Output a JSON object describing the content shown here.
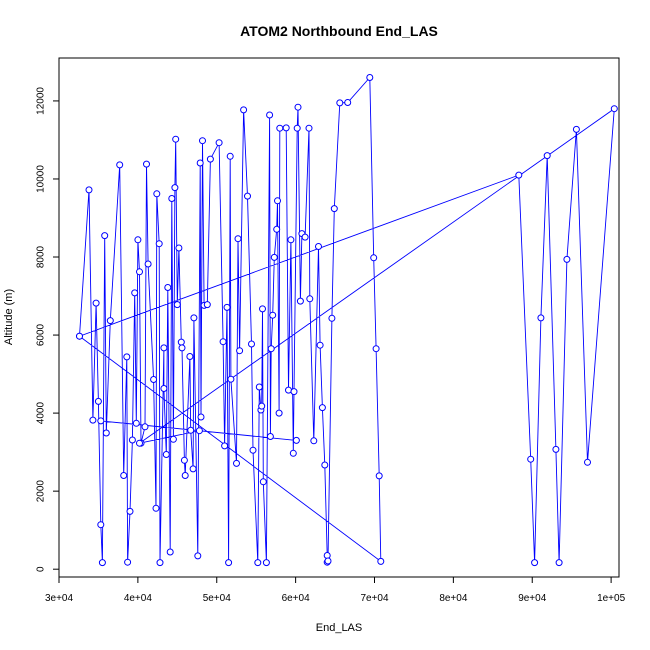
{
  "chart_data": {
    "type": "line",
    "title": "ATOM2 Northbound End_LAS",
    "xlabel": "End_LAS",
    "ylabel": "Altitude (m)",
    "xlim": [
      30000,
      101000
    ],
    "ylim": [
      -200,
      13100
    ],
    "xticks": [
      30000,
      40000,
      50000,
      60000,
      70000,
      80000,
      90000,
      100000
    ],
    "xtick_labels": [
      "3e+04",
      "4e+04",
      "5e+04",
      "6e+04",
      "7e+04",
      "8e+04",
      "9e+04",
      "1e+05"
    ],
    "yticks": [
      0,
      2000,
      4000,
      6000,
      8000,
      10000,
      12000
    ],
    "ytick_labels": [
      "0",
      "2000",
      "4000",
      "6000",
      "8000",
      "10000",
      "12000"
    ],
    "grid": false,
    "series": [
      {
        "color": "#0000ff",
        "marker": "open-circle",
        "points": [
          [
            32600,
            5970
          ],
          [
            33800,
            9720
          ],
          [
            34300,
            3820
          ],
          [
            34700,
            6820
          ],
          [
            35000,
            4300
          ],
          [
            35300,
            1140
          ],
          [
            35500,
            170
          ],
          [
            35800,
            8550
          ],
          [
            36000,
            3490
          ],
          [
            36500,
            6370
          ],
          [
            37700,
            10360
          ],
          [
            38200,
            2400
          ],
          [
            38600,
            5440
          ],
          [
            38700,
            180
          ],
          [
            39000,
            1480
          ],
          [
            39300,
            3310
          ],
          [
            39600,
            7080
          ],
          [
            39800,
            3740
          ],
          [
            40000,
            8440
          ],
          [
            40200,
            7620
          ],
          [
            40400,
            3230
          ],
          [
            40900,
            3650
          ],
          [
            41100,
            10380
          ],
          [
            41300,
            7820
          ],
          [
            42000,
            4860
          ],
          [
            42300,
            1560
          ],
          [
            42400,
            9620
          ],
          [
            42700,
            8340
          ],
          [
            42800,
            170
          ],
          [
            43300,
            5670
          ],
          [
            43300,
            4630
          ],
          [
            43600,
            2940
          ],
          [
            43800,
            7220
          ],
          [
            44100,
            440
          ],
          [
            44300,
            9500
          ],
          [
            44500,
            3330
          ],
          [
            44700,
            9780
          ],
          [
            44800,
            11020
          ],
          [
            45000,
            6780
          ],
          [
            45200,
            8230
          ],
          [
            45500,
            5820
          ],
          [
            45600,
            5670
          ],
          [
            45900,
            2790
          ],
          [
            46000,
            2400
          ],
          [
            46600,
            5450
          ],
          [
            46700,
            3560
          ],
          [
            47000,
            2570
          ],
          [
            47100,
            6440
          ],
          [
            47600,
            340
          ],
          [
            47900,
            10410
          ],
          [
            48000,
            3900
          ],
          [
            48200,
            10980
          ],
          [
            48400,
            6760
          ],
          [
            48800,
            6780
          ],
          [
            49200,
            10510
          ],
          [
            50300,
            10930
          ],
          [
            50800,
            5830
          ],
          [
            51000,
            3160
          ],
          [
            51300,
            6710
          ],
          [
            51500,
            170
          ],
          [
            51700,
            10580
          ],
          [
            51800,
            4870
          ],
          [
            52500,
            2710
          ],
          [
            52700,
            8470
          ],
          [
            52900,
            5600
          ],
          [
            53400,
            11770
          ],
          [
            53900,
            9560
          ],
          [
            54400,
            5770
          ],
          [
            54600,
            3050
          ],
          [
            55200,
            170
          ],
          [
            55400,
            4670
          ],
          [
            55600,
            4080
          ],
          [
            55700,
            4180
          ],
          [
            55800,
            6670
          ],
          [
            55900,
            2240
          ],
          [
            56300,
            170
          ],
          [
            56700,
            11640
          ],
          [
            56800,
            3400
          ],
          [
            56900,
            5650
          ],
          [
            57100,
            6510
          ],
          [
            57300,
            7990
          ],
          [
            57600,
            8710
          ],
          [
            57700,
            9440
          ],
          [
            57900,
            4000
          ],
          [
            58000,
            11300
          ],
          [
            58800,
            11310
          ],
          [
            59100,
            4590
          ],
          [
            59400,
            8440
          ],
          [
            59700,
            2970
          ],
          [
            59800,
            4550
          ],
          [
            60200,
            11300
          ],
          [
            60300,
            11840
          ],
          [
            60600,
            6870
          ],
          [
            60800,
            8600
          ],
          [
            61200,
            8510
          ],
          [
            61700,
            11300
          ],
          [
            61800,
            6930
          ],
          [
            62300,
            3290
          ],
          [
            62900,
            8270
          ],
          [
            63100,
            5740
          ],
          [
            63400,
            4140
          ],
          [
            63700,
            2670
          ],
          [
            64000,
            350
          ],
          [
            64000,
            180
          ],
          [
            64100,
            210
          ],
          [
            64600,
            6430
          ],
          [
            64900,
            9240
          ],
          [
            65600,
            11950
          ],
          [
            66600,
            11960
          ],
          [
            69400,
            12600
          ],
          [
            69900,
            7980
          ],
          [
            70200,
            5650
          ],
          [
            70600,
            2390
          ],
          [
            70800,
            200
          ],
          [
            32600,
            5970
          ],
          [
            88300,
            10100
          ],
          [
            89800,
            2820
          ],
          [
            90300,
            170
          ],
          [
            91100,
            6440
          ],
          [
            91900,
            10600
          ],
          [
            93000,
            3070
          ],
          [
            93400,
            170
          ],
          [
            94400,
            7940
          ],
          [
            95600,
            11270
          ],
          [
            97000,
            2740
          ],
          [
            100400,
            11800
          ],
          [
            40200,
            3230
          ],
          [
            47800,
            3550
          ],
          [
            60100,
            3300
          ],
          [
            35300,
            3800
          ]
        ]
      }
    ]
  }
}
